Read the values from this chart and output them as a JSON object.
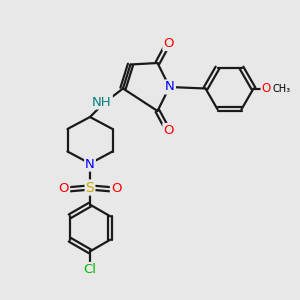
{
  "background_color": "#e8e8e8",
  "atom_colors": {
    "C": "#000000",
    "N": "#0000ff",
    "O": "#ff0000",
    "S": "#ccaa00",
    "Cl": "#00bb00",
    "H": "#008080"
  },
  "bond_color": "#1a1a1a",
  "bond_width": 1.6,
  "font_size_atoms": 9.5,
  "font_size_small": 8.5
}
